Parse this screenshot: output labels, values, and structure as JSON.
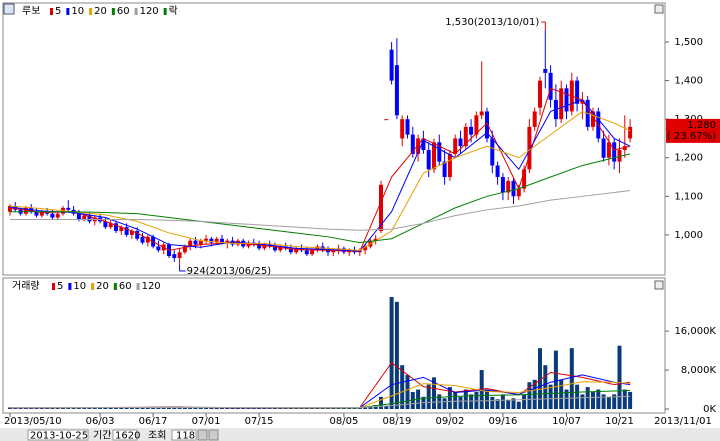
{
  "chart_data": {
    "type": "candlestick",
    "name": "루보",
    "lock_label": "락",
    "categories": [
      "2013/05/10",
      null,
      null,
      null,
      null,
      null,
      null,
      null,
      null,
      null,
      null,
      null,
      null,
      null,
      null,
      null,
      null,
      "06/03",
      null,
      null,
      null,
      null,
      null,
      null,
      null,
      null,
      null,
      "06/17",
      null,
      null,
      null,
      null,
      null,
      null,
      null,
      null,
      null,
      "07/01",
      null,
      null,
      null,
      null,
      null,
      null,
      null,
      null,
      null,
      "07/15",
      null,
      null,
      null,
      null,
      null,
      null,
      null,
      null,
      null,
      null,
      null,
      null,
      null,
      null,
      null,
      "08/05",
      null,
      null,
      null,
      null,
      null,
      null,
      null,
      null,
      null,
      "08/19",
      null,
      null,
      null,
      null,
      null,
      null,
      null,
      null,
      null,
      "09/02",
      null,
      null,
      null,
      null,
      null,
      null,
      null,
      null,
      null,
      "09/16",
      null,
      null,
      null,
      null,
      null,
      null,
      null,
      null,
      null,
      null,
      null,
      "10/07",
      null,
      null,
      null,
      null,
      null,
      null,
      null,
      null,
      null,
      "10/21",
      null,
      null
    ],
    "future_label": "2013/11/01",
    "open": [
      1060,
      1075,
      1065,
      1055,
      1070,
      1060,
      1050,
      1060,
      1055,
      1045,
      1055,
      1070,
      1065,
      1055,
      1040,
      1050,
      1035,
      1045,
      1035,
      1020,
      1030,
      1010,
      1020,
      1000,
      1010,
      995,
      980,
      995,
      970,
      960,
      975,
      950,
      940,
      955,
      970,
      985,
      975,
      985,
      990,
      980,
      990,
      980,
      985,
      975,
      985,
      970,
      980,
      975,
      965,
      975,
      970,
      960,
      970,
      965,
      955,
      965,
      960,
      950,
      960,
      970,
      960,
      955,
      960,
      965,
      955,
      960,
      955,
      960,
      970,
      985,
      1010,
      1300,
      1480,
      1440,
      1250,
      1300,
      1260,
      1210,
      1250,
      1220,
      1170,
      1240,
      1190,
      1150,
      1210,
      1250,
      1230,
      1280,
      1260,
      1310,
      1320,
      1250,
      1180,
      1150,
      1110,
      1140,
      1100,
      1120,
      1170,
      1280,
      1330,
      1430,
      1420,
      1350,
      1300,
      1380,
      1320,
      1400,
      1340,
      1350,
      1280,
      1320,
      1250,
      1200,
      1240,
      1190,
      1220,
      1250
    ],
    "high": [
      1080,
      1085,
      1070,
      1075,
      1080,
      1070,
      1065,
      1070,
      1065,
      1060,
      1075,
      1090,
      1075,
      1065,
      1055,
      1060,
      1050,
      1055,
      1045,
      1040,
      1035,
      1025,
      1030,
      1015,
      1020,
      1005,
      1000,
      1000,
      985,
      980,
      980,
      960,
      965,
      975,
      990,
      995,
      990,
      1000,
      995,
      995,
      1000,
      990,
      995,
      990,
      990,
      985,
      990,
      985,
      980,
      985,
      980,
      975,
      980,
      975,
      970,
      975,
      970,
      965,
      975,
      980,
      970,
      965,
      975,
      970,
      965,
      970,
      965,
      975,
      990,
      1000,
      1140,
      1300,
      1500,
      1510,
      1310,
      1310,
      1280,
      1260,
      1270,
      1240,
      1250,
      1260,
      1220,
      1220,
      1260,
      1270,
      1290,
      1300,
      1320,
      1450,
      1330,
      1270,
      1190,
      1160,
      1150,
      1150,
      1130,
      1180,
      1300,
      1330,
      1410,
      1530,
      1440,
      1390,
      1400,
      1390,
      1420,
      1410,
      1370,
      1360,
      1330,
      1330,
      1270,
      1260,
      1250,
      1250,
      1310,
      1300
    ],
    "low": [
      1050,
      1060,
      1050,
      1050,
      1055,
      1045,
      1045,
      1050,
      1040,
      1040,
      1050,
      1060,
      1050,
      1035,
      1035,
      1030,
      1025,
      1030,
      1015,
      1015,
      1005,
      1000,
      995,
      990,
      985,
      975,
      970,
      965,
      955,
      950,
      940,
      930,
      924,
      950,
      960,
      965,
      965,
      975,
      970,
      975,
      975,
      965,
      970,
      970,
      965,
      965,
      970,
      960,
      960,
      965,
      955,
      955,
      960,
      950,
      950,
      955,
      945,
      945,
      955,
      955,
      945,
      945,
      950,
      950,
      945,
      950,
      945,
      950,
      965,
      975,
      1005,
      1300,
      1390,
      1300,
      1230,
      1250,
      1200,
      1190,
      1210,
      1150,
      1160,
      1180,
      1130,
      1140,
      1200,
      1210,
      1220,
      1240,
      1250,
      1300,
      1240,
      1160,
      1130,
      1090,
      1090,
      1080,
      1090,
      1110,
      1160,
      1270,
      1310,
      1380,
      1330,
      1280,
      1290,
      1300,
      1310,
      1320,
      1300,
      1270,
      1270,
      1240,
      1190,
      1180,
      1170,
      1160,
      1200,
      1240
    ],
    "close": [
      1075,
      1065,
      1055,
      1070,
      1060,
      1050,
      1060,
      1055,
      1045,
      1055,
      1070,
      1065,
      1055,
      1040,
      1050,
      1035,
      1045,
      1035,
      1020,
      1030,
      1010,
      1020,
      1000,
      1010,
      990,
      980,
      995,
      970,
      960,
      975,
      945,
      940,
      955,
      970,
      985,
      975,
      985,
      990,
      980,
      990,
      980,
      985,
      975,
      985,
      970,
      980,
      975,
      965,
      975,
      970,
      960,
      970,
      965,
      955,
      965,
      960,
      950,
      960,
      970,
      960,
      955,
      960,
      965,
      955,
      960,
      955,
      960,
      970,
      985,
      990,
      1130,
      1300,
      1400,
      1310,
      1300,
      1260,
      1210,
      1250,
      1220,
      1170,
      1240,
      1190,
      1150,
      1210,
      1250,
      1230,
      1280,
      1260,
      1310,
      1320,
      1250,
      1180,
      1150,
      1110,
      1140,
      1100,
      1120,
      1170,
      1280,
      1320,
      1400,
      1420,
      1350,
      1300,
      1380,
      1320,
      1400,
      1340,
      1350,
      1280,
      1320,
      1250,
      1200,
      1240,
      1190,
      1220,
      1230,
      1280
    ],
    "volume": [
      320,
      280,
      250,
      300,
      260,
      240,
      300,
      350,
      270,
      260,
      310,
      420,
      330,
      290,
      260,
      280,
      250,
      300,
      360,
      280,
      310,
      270,
      260,
      290,
      350,
      380,
      300,
      420,
      360,
      290,
      410,
      450,
      520,
      380,
      330,
      300,
      280,
      260,
      300,
      250,
      240,
      270,
      260,
      280,
      230,
      250,
      260,
      300,
      240,
      220,
      250,
      230,
      260,
      240,
      280,
      220,
      210,
      250,
      240,
      230,
      260,
      250,
      240,
      270,
      300,
      260,
      280,
      350,
      420,
      800,
      2500,
      600,
      23000,
      22000,
      9000,
      7000,
      3500,
      4000,
      2500,
      5000,
      6500,
      3000,
      2200,
      4500,
      3500,
      2500,
      4000,
      3000,
      3500,
      8000,
      4000,
      2500,
      2000,
      3000,
      1800,
      2200,
      1500,
      3000,
      5500,
      6000,
      12500,
      9000,
      5000,
      12000,
      6000,
      4000,
      12500,
      5000,
      3000,
      4500,
      3500,
      4000,
      3000,
      2500,
      3000,
      13000,
      4000,
      3500
    ],
    "ma_x": [
      0,
      6,
      12,
      18,
      24,
      30,
      36,
      42,
      48,
      54,
      60,
      66,
      72,
      78,
      84,
      90,
      96,
      102,
      108,
      114,
      117
    ],
    "price_lines": [
      {
        "name": "5",
        "color": "#e00000",
        "values": [
          1070,
          1058,
          1060,
          1035,
          1005,
          960,
          975,
          980,
          972,
          962,
          960,
          957,
          1150,
          1250,
          1210,
          1290,
          1120,
          1380,
          1350,
          1220,
          1230
        ]
      },
      {
        "name": "10",
        "color": "#0000ff",
        "values": [
          1072,
          1062,
          1058,
          1045,
          1015,
          975,
          968,
          982,
          975,
          965,
          962,
          958,
          1060,
          1245,
          1200,
          1265,
          1170,
          1320,
          1350,
          1250,
          1230
        ]
      },
      {
        "name": "20",
        "color": "#e8a000",
        "values": [
          1075,
          1068,
          1060,
          1052,
          1035,
          1005,
          985,
          978,
          978,
          970,
          965,
          960,
          1010,
          1160,
          1200,
          1230,
          1200,
          1260,
          1320,
          1290,
          1270
        ]
      },
      {
        "name": "60",
        "color": "#008000",
        "values": [
          1060,
          1060,
          1060,
          1058,
          1055,
          1045,
          1035,
          1025,
          1015,
          1005,
          995,
          980,
          990,
          1030,
          1070,
          1100,
          1120,
          1150,
          1180,
          1200,
          1210
        ]
      },
      {
        "name": "120",
        "color": "#a0a0a0",
        "values": [
          1040,
          1040,
          1040,
          1040,
          1040,
          1038,
          1035,
          1030,
          1025,
          1020,
          1015,
          1012,
          1015,
          1030,
          1050,
          1065,
          1075,
          1090,
          1100,
          1110,
          1115
        ]
      }
    ],
    "volume_title": "거래량",
    "volume_lines": [
      {
        "name": "5",
        "color": "#e00000",
        "values": [
          270,
          290,
          300,
          310,
          330,
          380,
          300,
          250,
          260,
          240,
          250,
          300,
          9500,
          4600,
          3500,
          4200,
          2900,
          7500,
          6500,
          5000,
          5500
        ]
      },
      {
        "name": "10",
        "color": "#0000ff",
        "values": [
          280,
          290,
          300,
          305,
          320,
          350,
          330,
          280,
          260,
          250,
          250,
          280,
          5000,
          6500,
          3400,
          3900,
          3000,
          5500,
          7000,
          5500,
          5000
        ]
      },
      {
        "name": "20",
        "color": "#e8a000",
        "values": [
          290,
          290,
          295,
          300,
          310,
          330,
          330,
          300,
          280,
          260,
          255,
          265,
          2700,
          5200,
          4800,
          3600,
          3400,
          4400,
          5600,
          5500,
          5200
        ]
      },
      {
        "name": "60",
        "color": "#008000",
        "values": [
          300,
          300,
          300,
          300,
          300,
          305,
          310,
          310,
          305,
          295,
          290,
          285,
          1100,
          2200,
          2600,
          2800,
          2900,
          3200,
          3500,
          3700,
          3800
        ]
      },
      {
        "name": "120",
        "color": "#a0a0a0",
        "values": [
          300,
          300,
          300,
          300,
          300,
          300,
          300,
          300,
          300,
          300,
          300,
          300,
          700,
          1300,
          1600,
          1700,
          1900,
          2100,
          2300,
          2500,
          2600
        ]
      }
    ],
    "up_color": "#e00000",
    "down_color": "#0000ff",
    "volume_color": "#0a3a7a",
    "ylim": [
      896,
      1596
    ],
    "yticks": [
      {
        "value": 1000,
        "label": "1,000"
      },
      {
        "value": 1100,
        "label": "1,100"
      },
      {
        "value": 1200,
        "label": "1,200"
      },
      {
        "value": 1300,
        "label": "1,300"
      },
      {
        "value": 1400,
        "label": "1,400"
      },
      {
        "value": 1500,
        "label": "1,500"
      }
    ],
    "volume_ylim": [
      0,
      26500
    ],
    "volume_yticks": [
      {
        "value": 0,
        "label": "0K"
      },
      {
        "value": 8000,
        "label": "8,000K"
      },
      {
        "value": 16000,
        "label": "16,000K"
      }
    ],
    "price_marker": {
      "value": 1280,
      "label": "1,280"
    },
    "price_change": "( 23.67%)",
    "high_annotation": "1,530(2013/10/01)",
    "low_annotation": "924(2013/06/25)"
  },
  "toolbar": {
    "date": "2013-10-25",
    "period_label": "기간",
    "period": "1620",
    "query_label": "조회",
    "count": "118"
  }
}
